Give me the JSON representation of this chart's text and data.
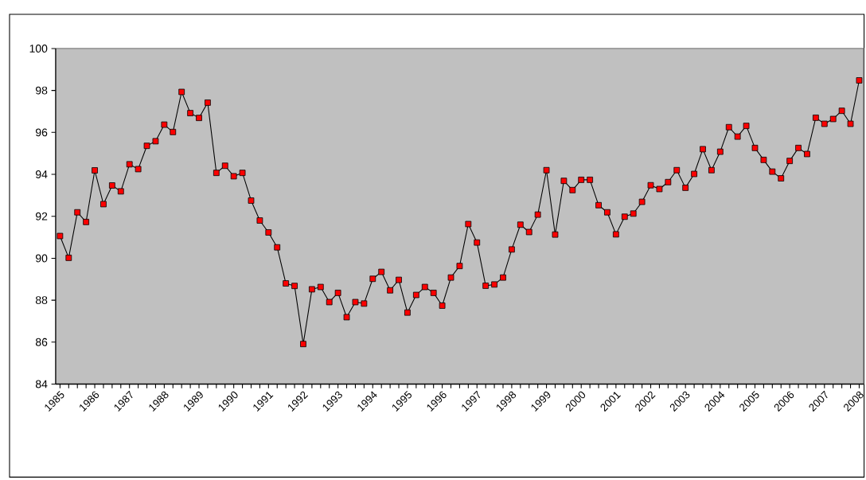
{
  "chart_data": {
    "type": "line",
    "categories": [
      "1985",
      null,
      null,
      null,
      "1986",
      null,
      null,
      null,
      "1987",
      null,
      null,
      null,
      "1988",
      null,
      null,
      null,
      "1989",
      null,
      null,
      null,
      "1990",
      null,
      null,
      null,
      "1991",
      null,
      null,
      null,
      "1992",
      null,
      null,
      null,
      "1993",
      null,
      null,
      null,
      "1994",
      null,
      null,
      null,
      "1995",
      null,
      null,
      null,
      "1996",
      null,
      null,
      null,
      "1997",
      null,
      null,
      null,
      "1998",
      null,
      null,
      null,
      "1999",
      null,
      null,
      null,
      "2000",
      null,
      null,
      null,
      "2001",
      null,
      null,
      null,
      "2002",
      null,
      null,
      null,
      "2003",
      null,
      null,
      null,
      "2004",
      null,
      null,
      null,
      "2005",
      null,
      null,
      null,
      "2006",
      null,
      null,
      null,
      "2007",
      null,
      null,
      null,
      "2008"
    ],
    "series": [
      {
        "color": "#ff0000",
        "values": [
          91.06,
          90.02,
          92.19,
          91.73,
          94.19,
          92.58,
          93.47,
          93.19,
          94.48,
          94.25,
          95.36,
          95.58,
          96.37,
          96.02,
          97.93,
          96.92,
          96.69,
          97.42,
          94.07,
          94.41,
          93.91,
          94.07,
          92.75,
          91.8,
          91.23,
          90.52,
          88.8,
          88.68,
          85.91,
          88.52,
          88.63,
          87.91,
          88.35,
          87.19,
          87.91,
          87.84,
          89.02,
          89.35,
          88.47,
          88.97,
          87.41,
          88.25,
          88.63,
          88.35,
          87.74,
          89.08,
          89.63,
          91.63,
          90.75,
          88.69,
          88.75,
          89.08,
          90.42,
          91.6,
          91.25,
          92.08,
          94.2,
          91.13,
          93.69,
          93.25,
          93.74,
          93.74,
          92.53,
          92.19,
          91.14,
          91.98,
          92.13,
          92.69,
          93.48,
          93.3,
          93.63,
          94.2,
          93.36,
          94.02,
          95.2,
          94.2,
          95.08,
          96.25,
          95.8,
          96.31,
          95.26,
          94.69,
          94.13,
          93.81,
          94.64,
          95.26,
          94.97,
          96.7,
          96.41,
          96.64,
          97.03,
          96.41,
          98.48
        ]
      }
    ],
    "ylim": [
      84,
      100
    ],
    "yticks": [
      84,
      86,
      88,
      90,
      92,
      94,
      96,
      98,
      100
    ],
    "marker": "square",
    "line_style": "solid"
  }
}
